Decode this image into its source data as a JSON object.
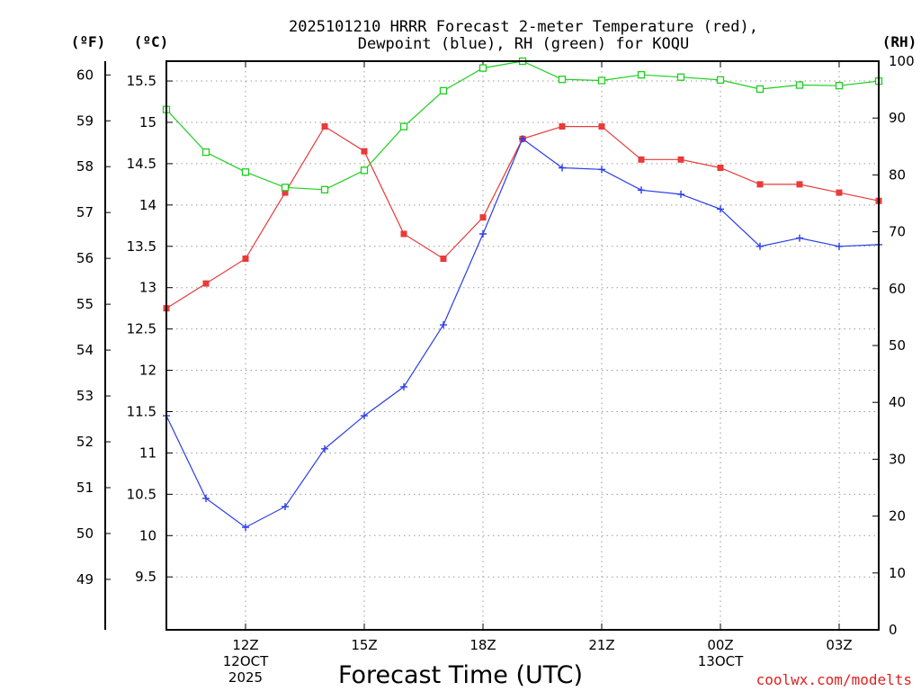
{
  "chart_data": {
    "type": "line",
    "title": "2025101210 HRRR Forecast 2-meter Temperature (red),",
    "subtitle": "Dewpoint (blue), RH (green) for KOQU",
    "xlabel": "Forecast Time (UTC)",
    "credit": "coolwx.com/modelts",
    "unit_labels": {
      "fahrenheit": "(ºF)",
      "celsius": "(ºC)",
      "rh": "(RH)"
    },
    "xlim": [
      10,
      28
    ],
    "x_ticks": [
      {
        "x": 12,
        "lines": [
          "12Z",
          "12OCT",
          "2025"
        ]
      },
      {
        "x": 15,
        "lines": [
          "15Z"
        ]
      },
      {
        "x": 18,
        "lines": [
          "18Z"
        ]
      },
      {
        "x": 21,
        "lines": [
          "21Z"
        ]
      },
      {
        "x": 24,
        "lines": [
          "00Z",
          "13OCT"
        ]
      },
      {
        "x": 27,
        "lines": [
          "03Z"
        ]
      }
    ],
    "celsius_axis": {
      "ylim": [
        8.86,
        15.74
      ],
      "ticks": [
        "9.5",
        "10",
        "10.5",
        "11",
        "11.5",
        "12",
        "12.5",
        "13",
        "13.5",
        "14",
        "14.5",
        "15",
        "15.5"
      ]
    },
    "fahrenheit_axis": {
      "ylim": [
        47.9,
        60.3
      ],
      "ticks": [
        "49",
        "50",
        "51",
        "52",
        "53",
        "54",
        "55",
        "56",
        "57",
        "58",
        "59",
        "60"
      ]
    },
    "rh_axis": {
      "ylim": [
        0,
        100
      ],
      "ticks": [
        "0",
        "10",
        "20",
        "30",
        "40",
        "50",
        "60",
        "70",
        "80",
        "90",
        "100"
      ]
    },
    "x": [
      10,
      11,
      12,
      13,
      14,
      15,
      16,
      17,
      18,
      19,
      20,
      21,
      22,
      23,
      24,
      25,
      26,
      27,
      28
    ],
    "series": [
      {
        "name": "Temperature",
        "axis": "celsius",
        "color": "#e83a3a",
        "marker": "filled-square",
        "values": [
          12.75,
          13.05,
          13.35,
          14.15,
          14.95,
          14.65,
          13.65,
          13.35,
          13.85,
          14.8,
          14.95,
          14.95,
          14.55,
          14.55,
          14.45,
          14.25,
          14.25,
          14.15,
          14.05
        ]
      },
      {
        "name": "Dewpoint",
        "axis": "celsius",
        "color": "#2b3ce8",
        "marker": "plus",
        "values": [
          11.45,
          10.45,
          10.1,
          10.35,
          11.05,
          11.45,
          11.8,
          12.55,
          13.65,
          14.8,
          14.45,
          14.43,
          14.18,
          14.13,
          13.95,
          13.5,
          13.6,
          13.5,
          13.52
        ]
      },
      {
        "name": "RH",
        "axis": "rh",
        "color": "#1ecf1e",
        "marker": "open-square",
        "values": [
          91.5,
          84,
          80.5,
          77.8,
          77.4,
          80.8,
          88.5,
          94.8,
          98.8,
          100,
          96.8,
          96.6,
          97.6,
          97.2,
          96.7,
          95.1,
          95.8,
          95.7,
          96.5
        ]
      }
    ]
  }
}
